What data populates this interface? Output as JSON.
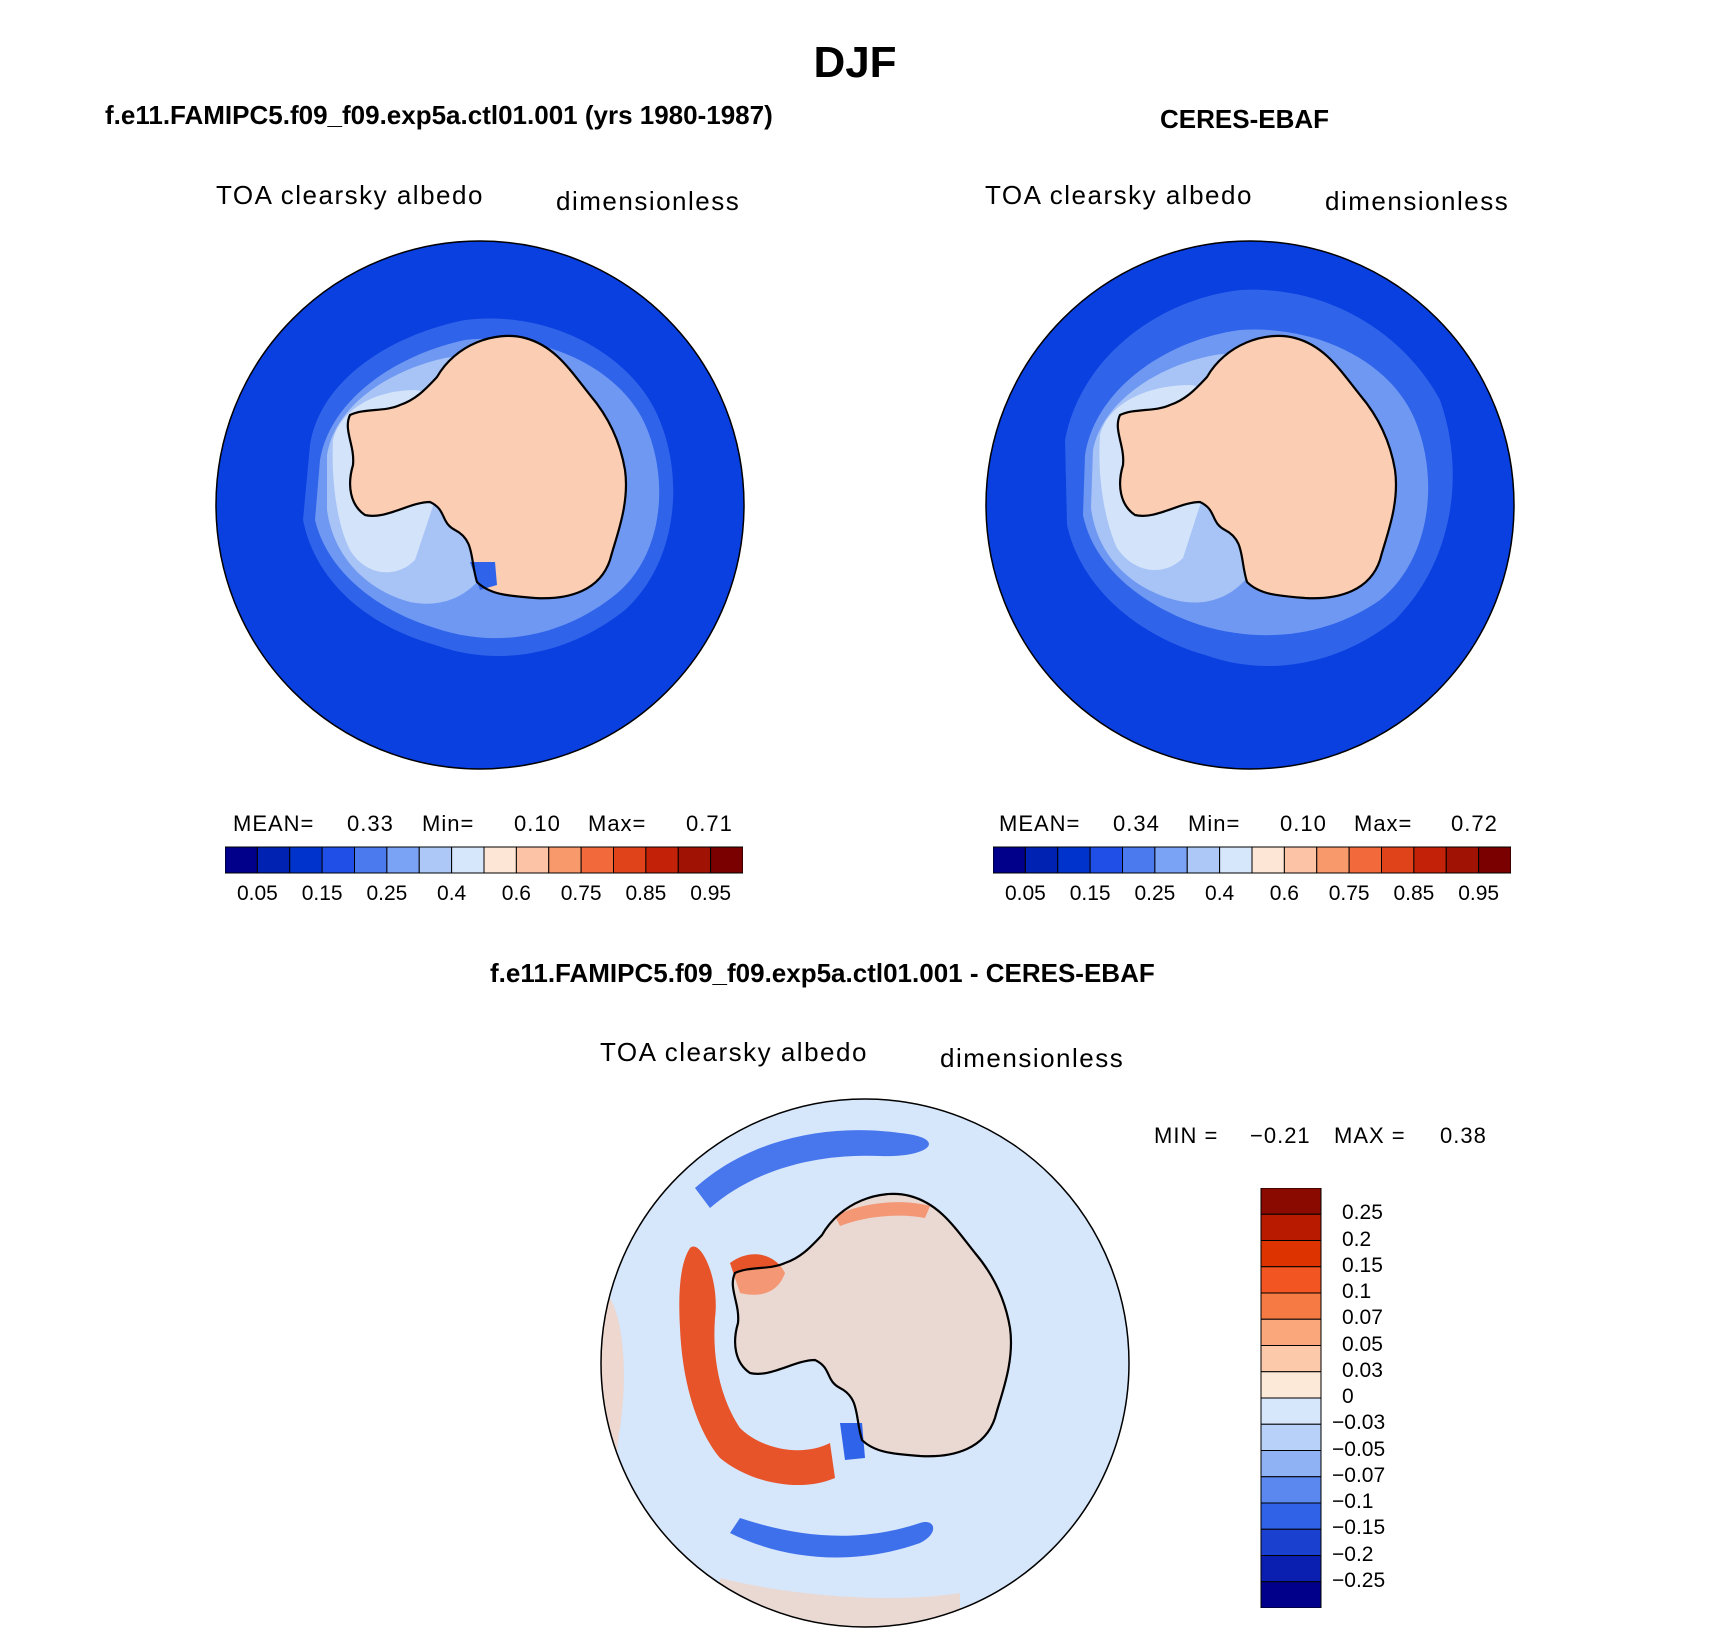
{
  "title": "DJF",
  "panels": [
    {
      "title": "f.e11.FAMIPC5.f09_f09.exp5a.ctl01.001 (yrs 1980-1987)",
      "variable": "TOA clearsky albedo",
      "units": "dimensionless",
      "mean_label": "MEAN=",
      "mean_value": "0.33",
      "min_label": "Min=",
      "min_value": "0.10",
      "max_label": "Max=",
      "max_value": "0.71"
    },
    {
      "title": "CERES-EBAF",
      "variable": "TOA clearsky albedo",
      "units": "dimensionless",
      "mean_label": "MEAN=",
      "mean_value": "0.34",
      "min_label": "Min=",
      "min_value": "0.10",
      "max_label": "Max=",
      "max_value": "0.72"
    }
  ],
  "abs_colorbar": {
    "tick_labels": [
      "0.05",
      "0.15",
      "0.25",
      "0.4",
      "0.6",
      "0.75",
      "0.85",
      "0.95"
    ],
    "colors": [
      "#00008b",
      "#0022b3",
      "#0033cc",
      "#1f4fe6",
      "#4a7aee",
      "#7aa2f5",
      "#adc7f7",
      "#d6e6fb",
      "#fde6d6",
      "#fcc3a6",
      "#f8996b",
      "#f26a3b",
      "#e0421a",
      "#c32108",
      "#a01204",
      "#7a0000"
    ]
  },
  "diff_panel": {
    "title": "f.e11.FAMIPC5.f09_f09.exp5a.ctl01.001 - CERES-EBAF",
    "variable": "TOA clearsky albedo",
    "units": "dimensionless",
    "min_label": "MIN =",
    "min_value": "−0.21",
    "max_label": "MAX =",
    "max_value": "0.38"
  },
  "diff_colorbar": {
    "tick_labels": [
      "0.25",
      "0.2",
      "0.15",
      "0.1",
      "0.07",
      "0.05",
      "0.03",
      "0",
      "−0.03",
      "−0.05",
      "−0.07",
      "−0.1",
      "−0.15",
      "−0.2",
      "−0.25"
    ],
    "colors_top_to_bottom": [
      "#8b0a00",
      "#b81a00",
      "#dd3300",
      "#f25522",
      "#f57a44",
      "#f9a77b",
      "#fcc9aa",
      "#fde9d8",
      "#d6e6fb",
      "#b8d1f8",
      "#8fb2f5",
      "#5a88ee",
      "#2f62e6",
      "#1a40d0",
      "#0a1fb0",
      "#00008b"
    ]
  },
  "colors": {
    "ocean_low": "#0a3fe0",
    "ocean_mid": "#2f63ea",
    "sea_ice_1": "#6f98f2",
    "sea_ice_2": "#a8c4f6",
    "sea_ice_3": "#d2e3fa",
    "continent": "#fbcdb3",
    "diff_background": "#d6e6fb",
    "diff_positive": "#e8542a",
    "diff_negative": "#2f63ea",
    "coastline": "#000000"
  }
}
